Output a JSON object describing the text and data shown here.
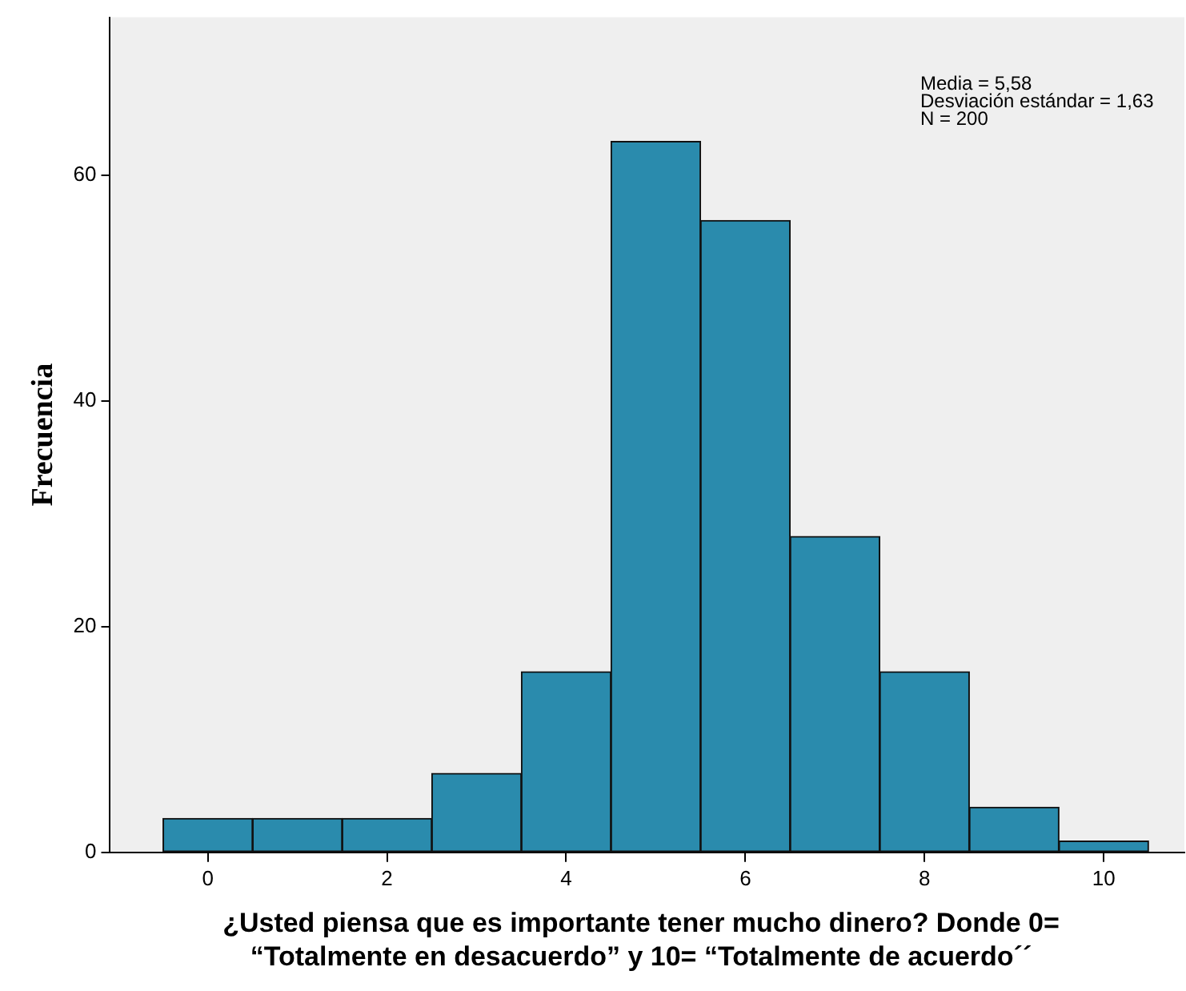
{
  "chart_data": {
    "type": "histogram",
    "xlabel": "¿Usted piensa que es importante tener mucho dinero? Donde 0=\n“Totalmente en desacuerdo” y 10= “Totalmente de acuerdo´´",
    "ylabel": "Frecuencia",
    "bins": [
      -0.5,
      0.5,
      1.5,
      2.5,
      3.5,
      4.5,
      5.5,
      6.5,
      7.5,
      8.5,
      9.5,
      10.5
    ],
    "values": [
      3,
      3,
      3,
      7,
      16,
      63,
      56,
      28,
      16,
      4,
      1
    ],
    "color": "#2a8bad",
    "xlim": [
      -1.1,
      10.9
    ],
    "xticks": [
      0,
      2,
      4,
      6,
      8,
      10
    ],
    "ylim": [
      0,
      74
    ],
    "yticks": [
      0,
      20,
      40,
      60
    ],
    "grid": false,
    "legend": false,
    "annotations": [
      "Media = 5,58",
      "Desviación estándar = 1,63",
      "N = 200"
    ]
  }
}
